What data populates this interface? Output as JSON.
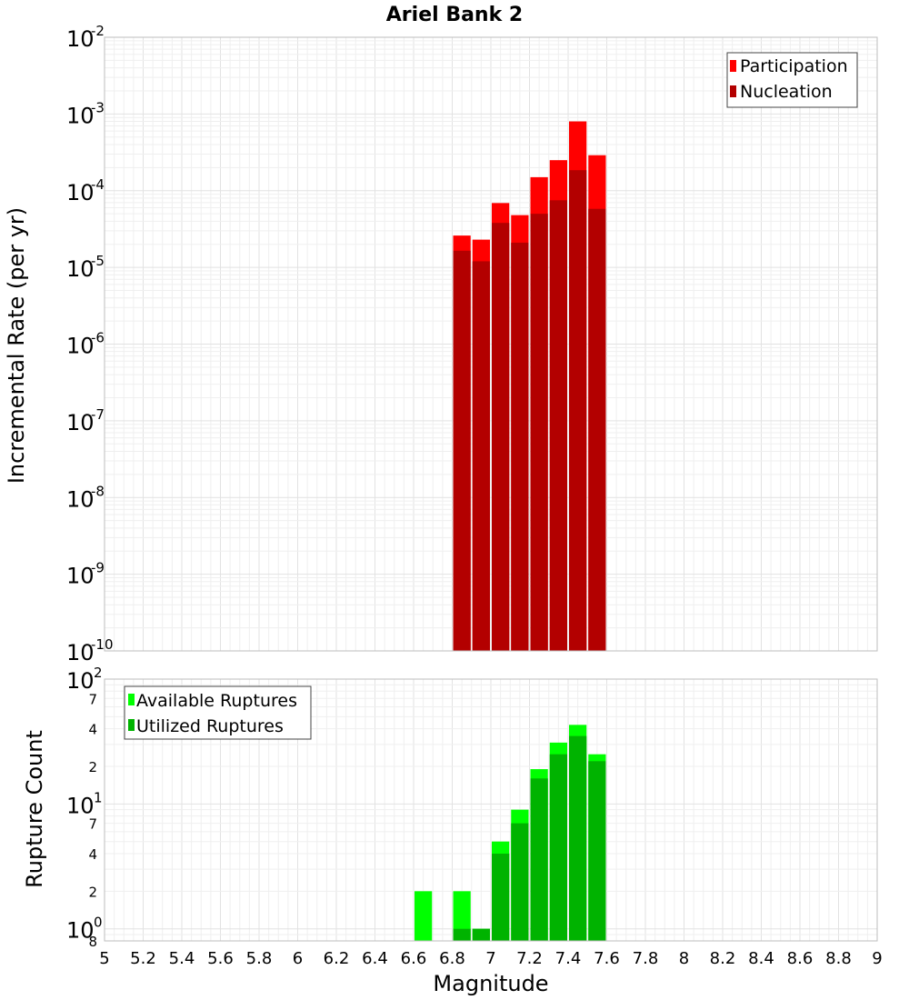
{
  "chart_data": [
    {
      "type": "bar",
      "title": "Ariel Bank 2",
      "ylabel": "Incremental Rate (per yr)",
      "xlabel": "",
      "yscale": "log",
      "ylim": [
        1e-10,
        0.01
      ],
      "xlim": [
        5,
        9
      ],
      "grid": true,
      "legend_position": "top-right",
      "bar_width": 0.1,
      "x": [
        6.85,
        6.95,
        7.05,
        7.15,
        7.25,
        7.35,
        7.45,
        7.55
      ],
      "series": [
        {
          "name": "Participation",
          "color": "#ff0000",
          "values": [
            2.6e-05,
            2.3e-05,
            6.9e-05,
            4.8e-05,
            0.00015,
            0.00025,
            0.0008,
            0.00029
          ]
        },
        {
          "name": "Nucleation",
          "color": "#b30000",
          "values": [
            1.65e-05,
            1.2e-05,
            3.8e-05,
            2.1e-05,
            5e-05,
            7.5e-05,
            0.000185,
            5.8e-05
          ]
        }
      ]
    },
    {
      "type": "bar",
      "title": "",
      "ylabel": "Rupture Count",
      "xlabel": "Magnitude",
      "yscale": "log",
      "ylim": [
        0.8,
        100
      ],
      "xlim": [
        5,
        9
      ],
      "grid": true,
      "legend_position": "top-left",
      "bar_width": 0.1,
      "x": [
        6.65,
        6.85,
        6.95,
        7.05,
        7.15,
        7.25,
        7.35,
        7.45,
        7.55
      ],
      "series": [
        {
          "name": "Available Ruptures",
          "color": "#00ff00",
          "values": [
            2,
            2,
            1,
            5,
            9,
            19,
            31,
            43,
            25
          ]
        },
        {
          "name": "Utilized Ruptures",
          "color": "#00b300",
          "values": [
            0,
            1,
            1,
            4,
            7,
            16,
            25,
            35,
            22
          ]
        }
      ]
    }
  ],
  "x_ticks": [
    "5",
    "5.2",
    "5.4",
    "5.6",
    "5.8",
    "6",
    "6.2",
    "6.4",
    "6.6",
    "6.8",
    "7",
    "7.2",
    "7.4",
    "7.6",
    "7.8",
    "8",
    "8.2",
    "8.4",
    "8.6",
    "8.8",
    "9"
  ],
  "top_y_ticks": [
    {
      "base": "10",
      "exp": "-2"
    },
    {
      "base": "10",
      "exp": "-3"
    },
    {
      "base": "10",
      "exp": "-4"
    },
    {
      "base": "10",
      "exp": "-5"
    },
    {
      "base": "10",
      "exp": "-6"
    },
    {
      "base": "10",
      "exp": "-7"
    },
    {
      "base": "10",
      "exp": "-8"
    },
    {
      "base": "10",
      "exp": "-9"
    },
    {
      "base": "10",
      "exp": "-10"
    }
  ],
  "bottom_y_major_ticks": [
    {
      "value": 100,
      "base": "10",
      "exp": "2"
    },
    {
      "value": 10,
      "base": "10",
      "exp": "1"
    },
    {
      "value": 1,
      "base": "10",
      "exp": "0"
    }
  ],
  "bottom_y_minor_ticks": [
    {
      "value": 70,
      "label": "7"
    },
    {
      "value": 40,
      "label": "4"
    },
    {
      "value": 20,
      "label": "2"
    },
    {
      "value": 7,
      "label": "7"
    },
    {
      "value": 4,
      "label": "4"
    },
    {
      "value": 2,
      "label": "2"
    },
    {
      "value": 0.8,
      "label": "8"
    }
  ]
}
